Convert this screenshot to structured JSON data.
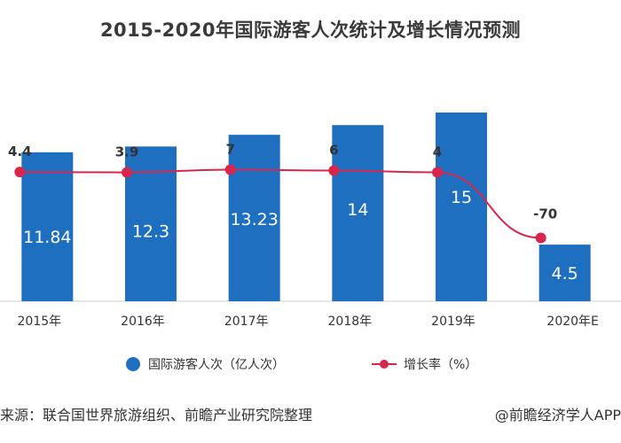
{
  "title": "2015-2020年国际游客人次统计及增长情况预测",
  "chart_data": {
    "type": "bar",
    "categories": [
      "2015年",
      "2016年",
      "2017年",
      "2018年",
      "2019年",
      "2020年E"
    ],
    "series": [
      {
        "name": "国际游客人次（亿人次）",
        "type": "bar",
        "values": [
          11.84,
          12.3,
          13.23,
          14,
          15,
          4.5
        ],
        "labels": [
          "11.84",
          "12.3",
          "13.23",
          "14",
          "15",
          "4.5"
        ],
        "color": "#1f6fc0"
      },
      {
        "name": "增长率（%）",
        "type": "line",
        "values": [
          4.4,
          3.9,
          7,
          6,
          4,
          -70
        ],
        "labels": [
          "4.4",
          "3.9",
          "7",
          "6",
          "4",
          "-70"
        ],
        "color": "#d6264c"
      }
    ]
  },
  "legend": [
    "国际游客人次（亿人次）",
    "增长率（%）"
  ],
  "source": "来源：联合国世界旅游组织、前瞻产业研究院整理",
  "brand": "@前瞻经济学人APP"
}
